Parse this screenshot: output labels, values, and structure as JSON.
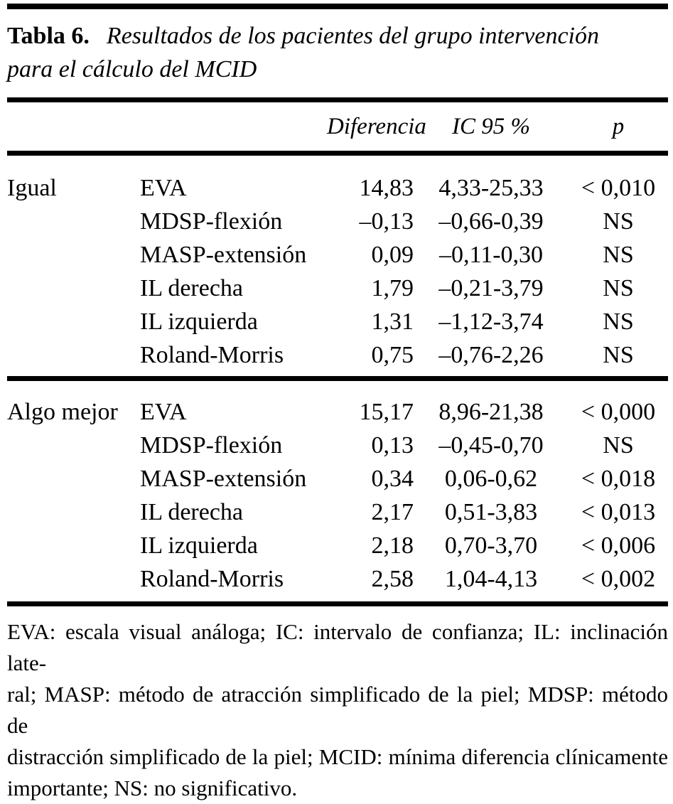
{
  "page": {
    "background": "#ffffff",
    "text_color": "#000000",
    "rule_color": "#000000"
  },
  "table": {
    "label": "Tabla 6.",
    "title_line1": "Resultados de los pacientes del grupo intervención",
    "title_line2": "para el cálculo del MCID",
    "headers": {
      "diferencia": "Diferencia",
      "ic95": "IC 95 %",
      "p": "p"
    },
    "sections": [
      {
        "group": "Igual",
        "rows": [
          {
            "measure": "EVA",
            "diferencia": "14,83",
            "ic95": "4,33-25,33",
            "p": "< 0,010"
          },
          {
            "measure": "MDSP-flexión",
            "diferencia": "–0,13",
            "ic95": "–0,66-0,39",
            "p": "NS"
          },
          {
            "measure": "MASP-extensión",
            "diferencia": "0,09",
            "ic95": "–0,11-0,30",
            "p": "NS"
          },
          {
            "measure": "IL derecha",
            "diferencia": "1,79",
            "ic95": "–0,21-3,79",
            "p": "NS"
          },
          {
            "measure": "IL izquierda",
            "diferencia": "1,31",
            "ic95": "–1,12-3,74",
            "p": "NS"
          },
          {
            "measure": "Roland-Morris",
            "diferencia": "0,75",
            "ic95": "–0,76-2,26",
            "p": "NS"
          }
        ]
      },
      {
        "group": "Algo mejor",
        "rows": [
          {
            "measure": "EVA",
            "diferencia": "15,17",
            "ic95": "8,96-21,38",
            "p": "< 0,000"
          },
          {
            "measure": "MDSP-flexión",
            "diferencia": "0,13",
            "ic95": "–0,45-0,70",
            "p": "NS"
          },
          {
            "measure": "MASP-extensión",
            "diferencia": "0,34",
            "ic95": "0,06-0,62",
            "p": "< 0,018"
          },
          {
            "measure": "IL derecha",
            "diferencia": "2,17",
            "ic95": "0,51-3,83",
            "p": "< 0,013"
          },
          {
            "measure": "IL izquierda",
            "diferencia": "2,18",
            "ic95": "0,70-3,70",
            "p": "< 0,006"
          },
          {
            "measure": "Roland-Morris",
            "diferencia": "2,58",
            "ic95": "1,04-4,13",
            "p": "< 0,002"
          }
        ]
      }
    ],
    "footnote_lines": [
      "EVA: escala visual análoga; IC: intervalo de confianza; IL: inclinación late-",
      "ral; MASP: método de atracción simplificado de la piel; MDSP: método de",
      "distracción simplificado de la piel; MCID: mínima diferencia clínicamente",
      "importante; NS: no significativo."
    ]
  }
}
